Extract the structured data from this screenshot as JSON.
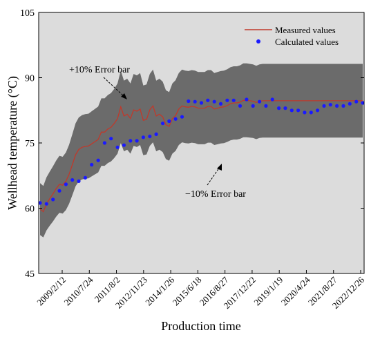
{
  "chart_data": {
    "type": "line",
    "xlabel": "Production time",
    "ylabel": "Wellhead temperature (°C)",
    "ylim": [
      45,
      105
    ],
    "yticks": [
      45,
      60,
      75,
      90,
      105
    ],
    "xtick_labels": [
      "2009/2/12",
      "2010/7/24",
      "2011/8/2",
      "2012/11/23",
      "2014/1/26",
      "2015/6/18",
      "2016/8/27",
      "2017/12/22",
      "2019/1/19",
      "2020/4/24",
      "2021/8/27",
      "2022/12/26"
    ],
    "legend": {
      "position": "top-right",
      "measured": "Measured values",
      "calculated": "Calculated values"
    },
    "annotations": {
      "upper": "+10% Error bar",
      "lower": "−10% Error bar"
    },
    "colors": {
      "measured": "#c0392b",
      "calculated": "#1a1aff",
      "band": "#6b6b6b",
      "plot_bg": "#dcdcdc"
    },
    "series": [
      {
        "name": "Measured values",
        "x": [
          0,
          0.5,
          1,
          1.5,
          2,
          2.5,
          3,
          3.5,
          4,
          4.5,
          5,
          5.5,
          6,
          6.5,
          7,
          7.5,
          8,
          8.5,
          9,
          9.5,
          10,
          10.5,
          11,
          11.5,
          12,
          12.5,
          13,
          13.5,
          14,
          14.5,
          15,
          15.5,
          16,
          16.5,
          17,
          17.5,
          18,
          18.5,
          19,
          19.5,
          20,
          20.5,
          21,
          21.5,
          22,
          22.5,
          23,
          23.5,
          24,
          24.5,
          25,
          25.5,
          26,
          26.5,
          27,
          27.5,
          28,
          28.5,
          29,
          29.5,
          30,
          30.5,
          31,
          31.5,
          32,
          32.5,
          33,
          33.5,
          34,
          34.5,
          35,
          35.5,
          36,
          36.5,
          37,
          37.5,
          38,
          38.5,
          39,
          39.5,
          40,
          40.5,
          41,
          41.5,
          42,
          42.5,
          43,
          43.5,
          44,
          44.5,
          45,
          45.5,
          46,
          46.5,
          47,
          47.5,
          48,
          48.5,
          49,
          49.5,
          50
        ],
        "y": [
          59.8,
          59.2,
          61,
          62.2,
          63.3,
          64.5,
          65.5,
          65.3,
          66.2,
          67.8,
          70,
          72.3,
          73.5,
          74,
          74.2,
          74.3,
          74.8,
          75.3,
          75.8,
          77.5,
          77.5,
          78.2,
          78.6,
          79.5,
          80.6,
          83.3,
          81.2,
          81.6,
          80.6,
          82.6,
          82.3,
          82.8,
          80.2,
          80.4,
          82.6,
          83.5,
          81.2,
          81.6,
          81,
          79.2,
          78.8,
          80.6,
          81.3,
          82.8,
          83.5,
          83.3,
          83.2,
          83.4,
          83.3,
          83,
          83,
          83,
          83.4,
          83.4,
          82.8,
          83,
          83.2,
          83.3,
          83.6,
          84,
          84.2,
          84.2,
          84.4,
          84.8,
          84.8,
          84.7,
          84.6,
          84.3,
          84.6,
          84.7,
          84.7,
          84.7,
          84.7,
          84.7,
          84.7,
          84.7,
          84.7,
          84.7,
          84.7,
          84.7,
          84.7,
          84.7,
          84.7,
          84.7,
          84.7,
          84.7,
          84.7,
          84.7,
          84.7,
          84.7,
          84.7,
          84.7,
          84.7,
          84.7,
          84.7,
          84.7,
          84.7,
          84.7,
          84.7,
          84.7,
          84.7
        ]
      },
      {
        "name": "Calculated values",
        "x": [
          0,
          1,
          2,
          3,
          4,
          5,
          6,
          7,
          8,
          9,
          10,
          11,
          12,
          13,
          14,
          15,
          16,
          17,
          18,
          19,
          20,
          21,
          22,
          23,
          24,
          25,
          26,
          27,
          28,
          29,
          30,
          31,
          32,
          33,
          34,
          35,
          36,
          37,
          38,
          39,
          40,
          41,
          42,
          43,
          44,
          45,
          46,
          47,
          48,
          49,
          50
        ],
        "y": [
          61.2,
          61,
          62,
          64,
          65.5,
          66.5,
          66.2,
          67,
          70,
          71,
          75,
          76,
          74,
          74.5,
          75.5,
          75.5,
          76.3,
          76.5,
          77,
          79.5,
          80,
          80.5,
          81,
          84.6,
          84.5,
          84.2,
          84.8,
          84.5,
          84,
          84.8,
          84.8,
          83.5,
          85,
          83.5,
          84.5,
          83.5,
          85,
          83,
          83,
          82.5,
          82.5,
          82,
          82,
          82.5,
          83.5,
          83.8,
          83.5,
          83.5,
          84,
          84.5,
          84.2
        ]
      }
    ]
  }
}
